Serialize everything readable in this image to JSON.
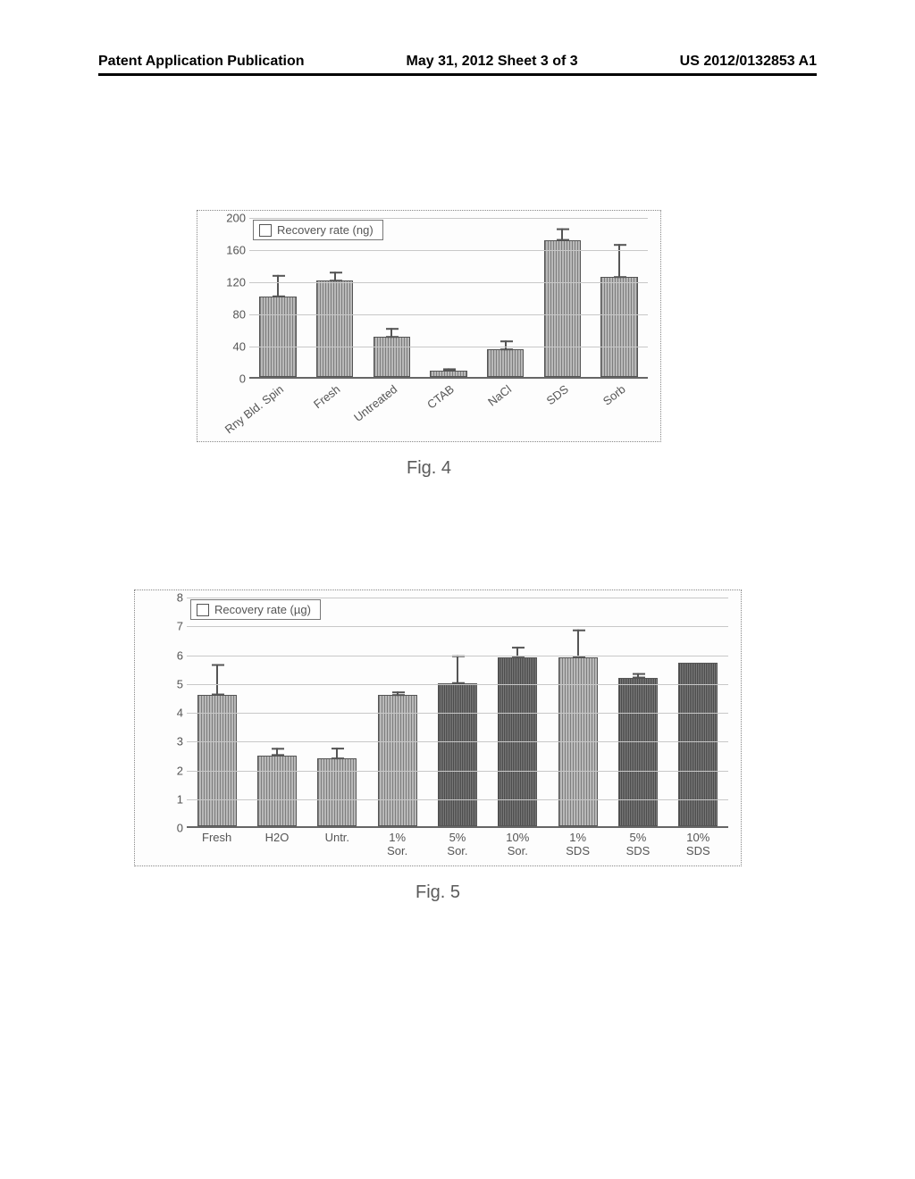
{
  "header": {
    "left": "Patent Application Publication",
    "center": "May 31, 2012  Sheet 3 of 3",
    "right": "US 2012/0132853 A1"
  },
  "fig4": {
    "caption": "Fig. 4",
    "type": "bar",
    "legend_label": "Recovery rate (ng)",
    "ylim": [
      0,
      200
    ],
    "ytick_step": 40,
    "ytick_labels": [
      "0",
      "40",
      "80",
      "120",
      "160",
      "200"
    ],
    "grid_color": "#c8c8c8",
    "bar_color": "#b9b9b9",
    "categories": [
      "Rny Bld. Spin",
      "Fresh",
      "Untreated",
      "CTAB",
      "NaCl",
      "SDS",
      "Sorb"
    ],
    "values": [
      98,
      118,
      48,
      6,
      32,
      168,
      122
    ],
    "err_up": [
      28,
      12,
      12,
      4,
      12,
      16,
      42
    ],
    "fontsize": 13
  },
  "fig5": {
    "caption": "Fig. 5",
    "type": "bar",
    "legend_label": "Recovery rate (µg)",
    "ylim": [
      0,
      8
    ],
    "ytick_step": 1,
    "ytick_labels": [
      "0",
      "1",
      "2",
      "3",
      "4",
      "5",
      "6",
      "7",
      "8"
    ],
    "grid_color": "#c8c8c8",
    "bar_color_light": "#b9b9b9",
    "bar_color_dark": "#7a7a7a",
    "categories": [
      "Fresh",
      "H2O",
      "Untr.",
      "1%\nSor.",
      "5%\nSor.",
      "10%\nSor.",
      "1%\nSDS",
      "5%\nSDS",
      "10%\nSDS"
    ],
    "values": [
      4.5,
      2.4,
      2.3,
      4.5,
      4.9,
      5.8,
      5.8,
      5.1,
      5.6
    ],
    "err_up": [
      1.1,
      0.3,
      0.4,
      0.15,
      1.0,
      0.4,
      1.0,
      0.2,
      0.0
    ],
    "dark_idx": [
      4,
      5,
      7,
      8
    ],
    "fontsize": 13
  }
}
